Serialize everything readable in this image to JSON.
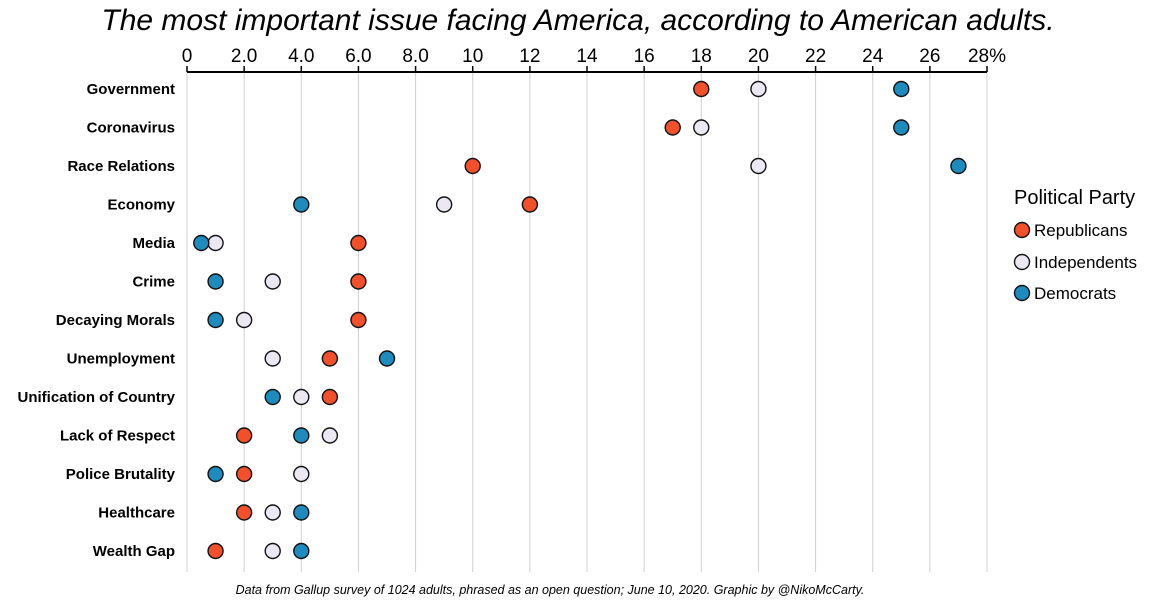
{
  "chart_data": {
    "type": "scatter",
    "title": "The most important issue facing America, according to American adults.",
    "footer": "Data from Gallup survey of 1024 adults, phrased as an open question; June 10, 2020. Graphic by @NikoMcCarty.",
    "x_ticks": [
      "0",
      "2.0",
      "4.0",
      "6.0",
      "8.0",
      "10",
      "12",
      "14",
      "16",
      "18",
      "20",
      "22",
      "24",
      "26",
      "28%"
    ],
    "x_tick_values": [
      0,
      2,
      4,
      6,
      8,
      10,
      12,
      14,
      16,
      18,
      20,
      22,
      24,
      26,
      28
    ],
    "xlim": [
      0,
      28
    ],
    "grid": true,
    "legend": {
      "title": "Political Party",
      "placement": "right"
    },
    "categories": [
      "Government",
      "Coronavirus",
      "Race Relations",
      "Economy",
      "Media",
      "Crime",
      "Decaying Morals",
      "Unemployment",
      "Unification of Country",
      "Lack of Respect",
      "Police Brutality",
      "Healthcare",
      "Wealth Gap"
    ],
    "series": [
      {
        "name": "Republicans",
        "color": "#f0502b",
        "values": [
          18,
          17,
          10,
          12,
          6,
          6,
          6,
          5,
          5,
          2,
          2,
          2,
          1
        ]
      },
      {
        "name": "Independents",
        "color": "#ebe8f4",
        "values": [
          20,
          18,
          20,
          9,
          1,
          3,
          2,
          3,
          4,
          5,
          4,
          3,
          3
        ]
      },
      {
        "name": "Democrats",
        "color": "#1f8bbd",
        "values": [
          25,
          25,
          27,
          4,
          0.5,
          1,
          1,
          7,
          3,
          4,
          1,
          4,
          4
        ]
      }
    ]
  }
}
